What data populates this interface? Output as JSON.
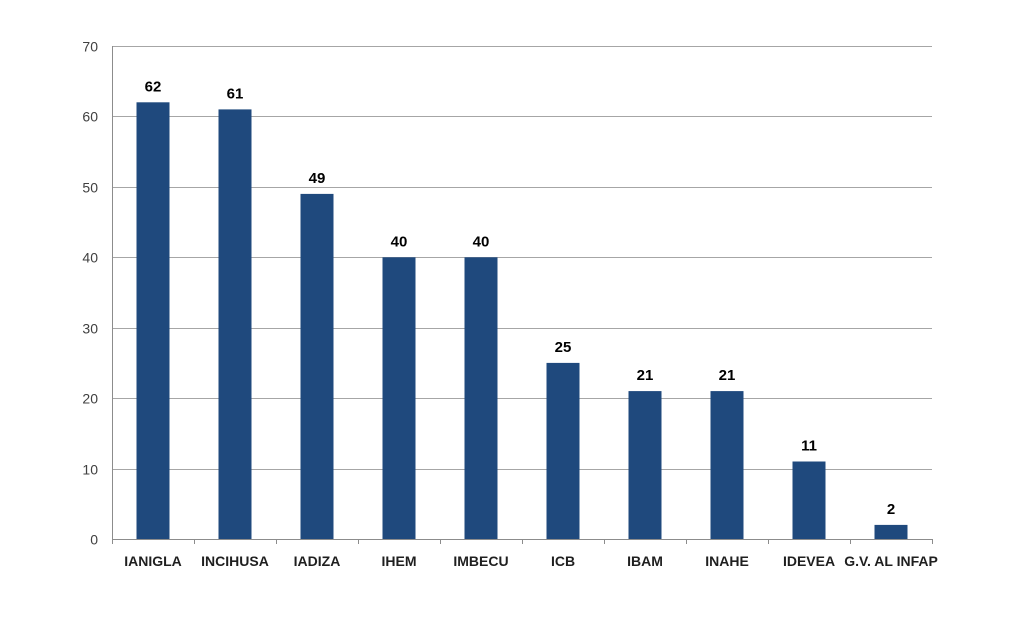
{
  "chart_data": {
    "type": "bar",
    "categories": [
      "IANIGLA",
      "INCIHUSA",
      "IADIZA",
      "IHEM",
      "IMBECU",
      "ICB",
      "IBAM",
      "INAHE",
      "IDEVEA",
      "G.V. AL INFAP"
    ],
    "values": [
      62,
      61,
      49,
      40,
      40,
      25,
      21,
      21,
      11,
      2
    ],
    "data_labels": [
      "62",
      "61",
      "49",
      "40",
      "40",
      "25",
      "21",
      "21",
      "11",
      "2"
    ],
    "title": "",
    "xlabel": "",
    "ylabel": "",
    "ylim": [
      0,
      70
    ],
    "y_ticks": [
      0,
      10,
      20,
      30,
      40,
      50,
      60,
      70
    ],
    "grid": true,
    "legend": "none",
    "bar_color": "#1f497d"
  }
}
